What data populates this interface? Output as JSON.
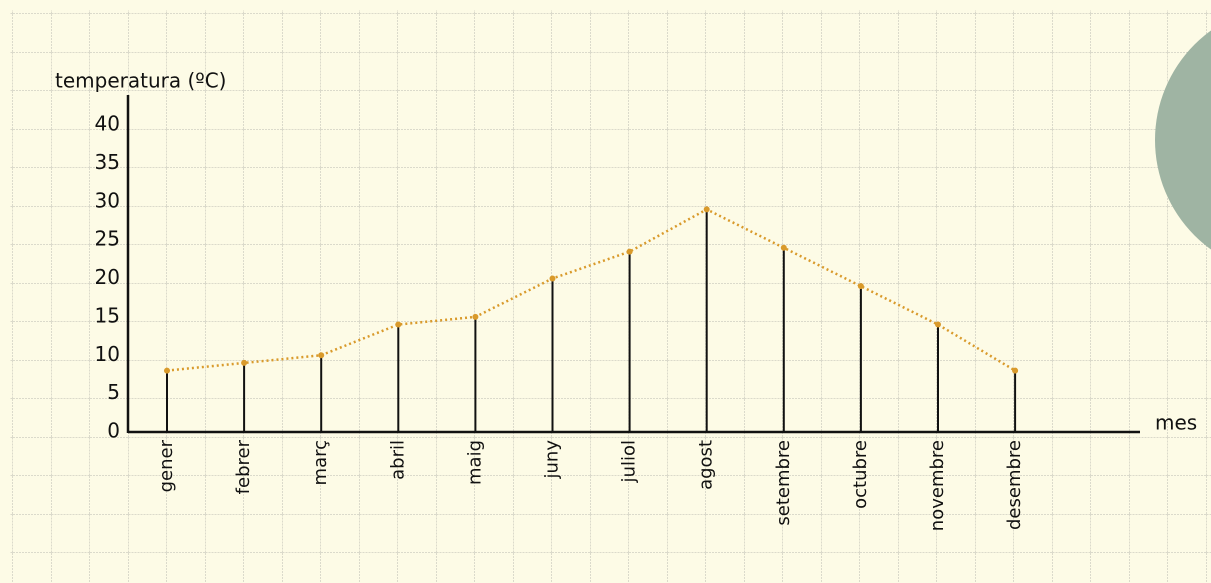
{
  "chart_data": {
    "type": "line",
    "y_label": "temperatura (ºC)",
    "x_label": "mes",
    "categories": [
      "gener",
      "febrer",
      "març",
      "abril",
      "maig",
      "juny",
      "juliol",
      "agost",
      "setembre",
      "octubre",
      "novembre",
      "desembre"
    ],
    "values": [
      8,
      9,
      10,
      14,
      15,
      20,
      23.5,
      29,
      24,
      19,
      14,
      8
    ],
    "color": "#d99a2b",
    "drop_color": "#111111",
    "ylim": [
      0,
      40
    ],
    "yticks": [
      0,
      5,
      10,
      15,
      20,
      25,
      30,
      35,
      40
    ]
  }
}
